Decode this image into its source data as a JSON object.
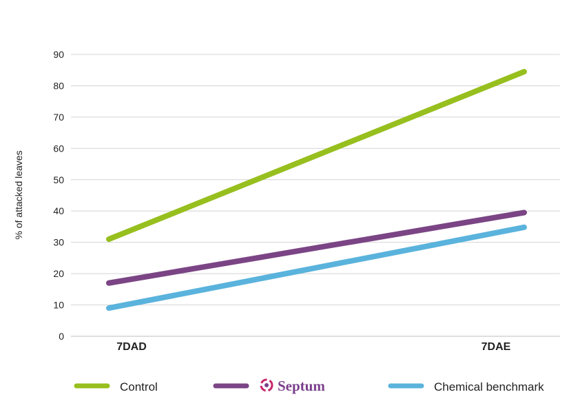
{
  "chart_data": {
    "type": "line",
    "x": [
      "7DAD",
      "7DAE"
    ],
    "ylabel": "% of attacked leaves",
    "xlabel": "",
    "ylim": [
      0,
      90
    ],
    "yticks": [
      0,
      10,
      20,
      30,
      40,
      50,
      60,
      70,
      80,
      90
    ],
    "grid": true,
    "legend_position": "bottom",
    "series": [
      {
        "name": "Control",
        "values": [
          31,
          84.5
        ],
        "color": "#97bf1e"
      },
      {
        "name": "Septum",
        "values": [
          17,
          39.5
        ],
        "color": "#7b4585",
        "logo": true
      },
      {
        "name": "Chemical benchmark",
        "values": [
          9,
          34.8
        ],
        "color": "#5ab3dc"
      }
    ]
  }
}
